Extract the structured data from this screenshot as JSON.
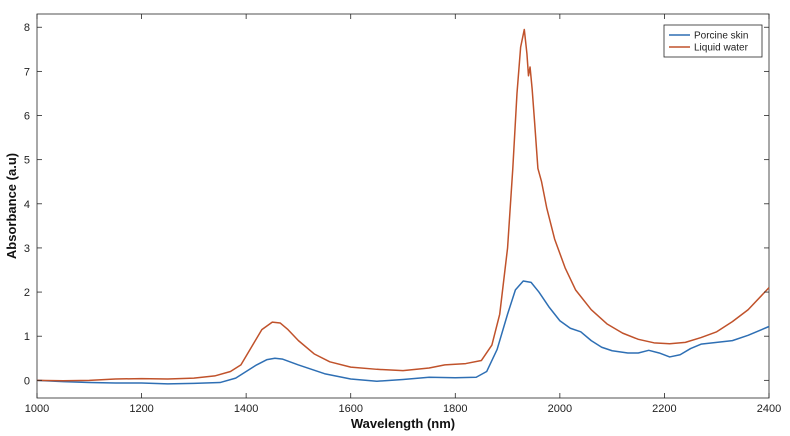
{
  "chart_data": {
    "type": "line",
    "title": "",
    "xlabel": "Wavelength (nm)",
    "ylabel": "Absorbance (a.u)",
    "xlim": [
      1000,
      2400
    ],
    "ylim": [
      -0.4,
      8.3
    ],
    "xticks": [
      1000,
      1200,
      1400,
      1600,
      1800,
      2000,
      2200,
      2400
    ],
    "yticks": [
      0,
      1,
      2,
      3,
      4,
      5,
      6,
      7,
      8
    ],
    "grid": false,
    "legend_position": "top-right",
    "series": [
      {
        "name": "Porcine skin",
        "color": "#2e6fb4",
        "points": [
          [
            1000,
            0
          ],
          [
            1050,
            -0.03
          ],
          [
            1100,
            -0.05
          ],
          [
            1150,
            -0.06
          ],
          [
            1200,
            -0.06
          ],
          [
            1250,
            -0.08
          ],
          [
            1300,
            -0.07
          ],
          [
            1350,
            -0.05
          ],
          [
            1380,
            0.05
          ],
          [
            1400,
            0.2
          ],
          [
            1420,
            0.35
          ],
          [
            1440,
            0.47
          ],
          [
            1455,
            0.5
          ],
          [
            1470,
            0.48
          ],
          [
            1500,
            0.35
          ],
          [
            1550,
            0.15
          ],
          [
            1600,
            0.03
          ],
          [
            1650,
            -0.02
          ],
          [
            1700,
            0.02
          ],
          [
            1750,
            0.07
          ],
          [
            1800,
            0.06
          ],
          [
            1840,
            0.07
          ],
          [
            1860,
            0.2
          ],
          [
            1880,
            0.7
          ],
          [
            1900,
            1.5
          ],
          [
            1915,
            2.05
          ],
          [
            1930,
            2.25
          ],
          [
            1945,
            2.22
          ],
          [
            1960,
            2.0
          ],
          [
            1980,
            1.65
          ],
          [
            2000,
            1.35
          ],
          [
            2020,
            1.18
          ],
          [
            2040,
            1.1
          ],
          [
            2060,
            0.9
          ],
          [
            2080,
            0.75
          ],
          [
            2100,
            0.67
          ],
          [
            2130,
            0.62
          ],
          [
            2150,
            0.62
          ],
          [
            2170,
            0.68
          ],
          [
            2190,
            0.62
          ],
          [
            2210,
            0.53
          ],
          [
            2230,
            0.58
          ],
          [
            2250,
            0.72
          ],
          [
            2270,
            0.82
          ],
          [
            2300,
            0.86
          ],
          [
            2330,
            0.9
          ],
          [
            2360,
            1.02
          ],
          [
            2400,
            1.22
          ]
        ]
      },
      {
        "name": "Liquid water",
        "color": "#c0522b",
        "points": [
          [
            1000,
            0
          ],
          [
            1050,
            -0.01
          ],
          [
            1100,
            0
          ],
          [
            1150,
            0.03
          ],
          [
            1200,
            0.04
          ],
          [
            1250,
            0.03
          ],
          [
            1300,
            0.05
          ],
          [
            1340,
            0.1
          ],
          [
            1370,
            0.2
          ],
          [
            1390,
            0.35
          ],
          [
            1410,
            0.75
          ],
          [
            1430,
            1.15
          ],
          [
            1450,
            1.32
          ],
          [
            1465,
            1.3
          ],
          [
            1480,
            1.15
          ],
          [
            1500,
            0.9
          ],
          [
            1530,
            0.6
          ],
          [
            1560,
            0.42
          ],
          [
            1600,
            0.3
          ],
          [
            1650,
            0.25
          ],
          [
            1700,
            0.22
          ],
          [
            1750,
            0.28
          ],
          [
            1780,
            0.35
          ],
          [
            1820,
            0.38
          ],
          [
            1850,
            0.45
          ],
          [
            1870,
            0.8
          ],
          [
            1885,
            1.5
          ],
          [
            1900,
            3.0
          ],
          [
            1910,
            4.8
          ],
          [
            1918,
            6.5
          ],
          [
            1925,
            7.55
          ],
          [
            1932,
            7.95
          ],
          [
            1937,
            7.4
          ],
          [
            1940,
            6.9
          ],
          [
            1943,
            7.1
          ],
          [
            1947,
            6.6
          ],
          [
            1952,
            5.8
          ],
          [
            1958,
            4.8
          ],
          [
            1965,
            4.5
          ],
          [
            1975,
            3.9
          ],
          [
            1990,
            3.2
          ],
          [
            2010,
            2.55
          ],
          [
            2030,
            2.05
          ],
          [
            2060,
            1.6
          ],
          [
            2090,
            1.28
          ],
          [
            2120,
            1.07
          ],
          [
            2150,
            0.93
          ],
          [
            2180,
            0.85
          ],
          [
            2210,
            0.83
          ],
          [
            2240,
            0.86
          ],
          [
            2270,
            0.97
          ],
          [
            2300,
            1.1
          ],
          [
            2330,
            1.33
          ],
          [
            2360,
            1.6
          ],
          [
            2400,
            2.1
          ]
        ]
      }
    ]
  }
}
